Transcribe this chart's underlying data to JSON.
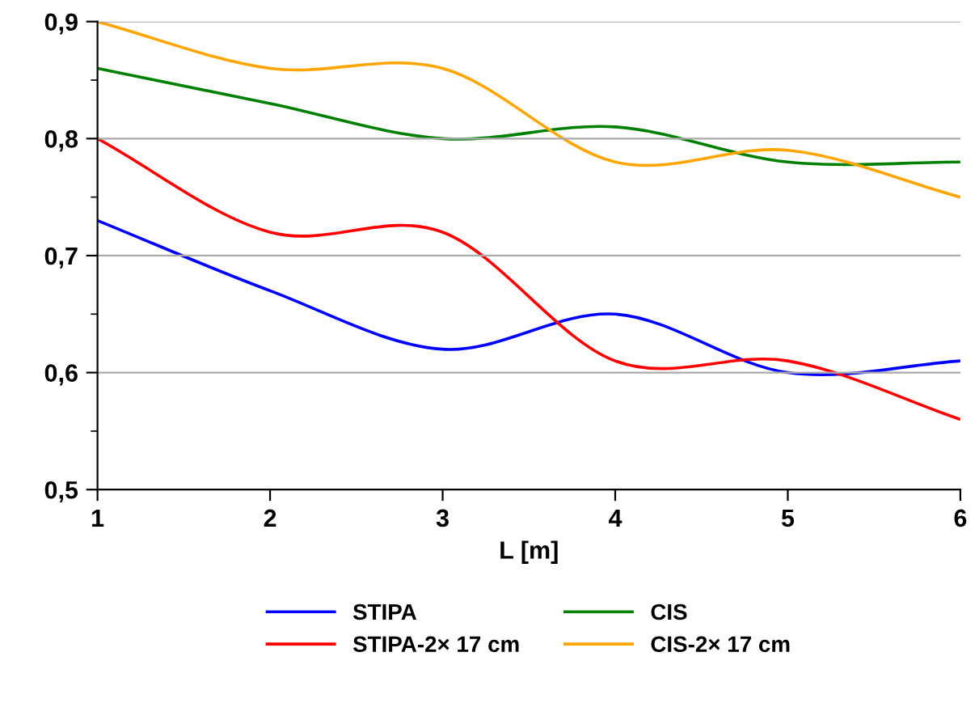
{
  "chart_data": {
    "type": "line",
    "xlabel": "L [m]",
    "x": [
      1,
      2,
      3,
      4,
      5,
      6
    ],
    "series": [
      {
        "name": "STIPA",
        "color": "#0000ff",
        "values": [
          0.73,
          0.67,
          0.62,
          0.65,
          0.6,
          0.61
        ]
      },
      {
        "name": "STIPA-2× 17 cm",
        "color": "#ff0000",
        "values": [
          0.8,
          0.72,
          0.72,
          0.61,
          0.61,
          0.56
        ]
      },
      {
        "name": "CIS",
        "color": "#008000",
        "values": [
          0.86,
          0.83,
          0.8,
          0.81,
          0.78,
          0.78
        ]
      },
      {
        "name": "CIS-2× 17 cm",
        "color": "#ffa500",
        "values": [
          0.9,
          0.86,
          0.86,
          0.78,
          0.79,
          0.75
        ]
      }
    ],
    "xlim": [
      1,
      6
    ],
    "xticks": [
      1,
      2,
      3,
      4,
      5,
      6
    ],
    "ylim": [
      0.5,
      0.9
    ],
    "yticks": [
      {
        "value": 0.5,
        "label": "0,5"
      },
      {
        "value": 0.6,
        "label": "0,6"
      },
      {
        "value": 0.7,
        "label": "0,7"
      },
      {
        "value": 0.8,
        "label": "0,8"
      },
      {
        "value": 0.9,
        "label": "0,9"
      }
    ],
    "grid": "y",
    "legend": "bottom",
    "marker": "none",
    "line_style": "solid"
  }
}
